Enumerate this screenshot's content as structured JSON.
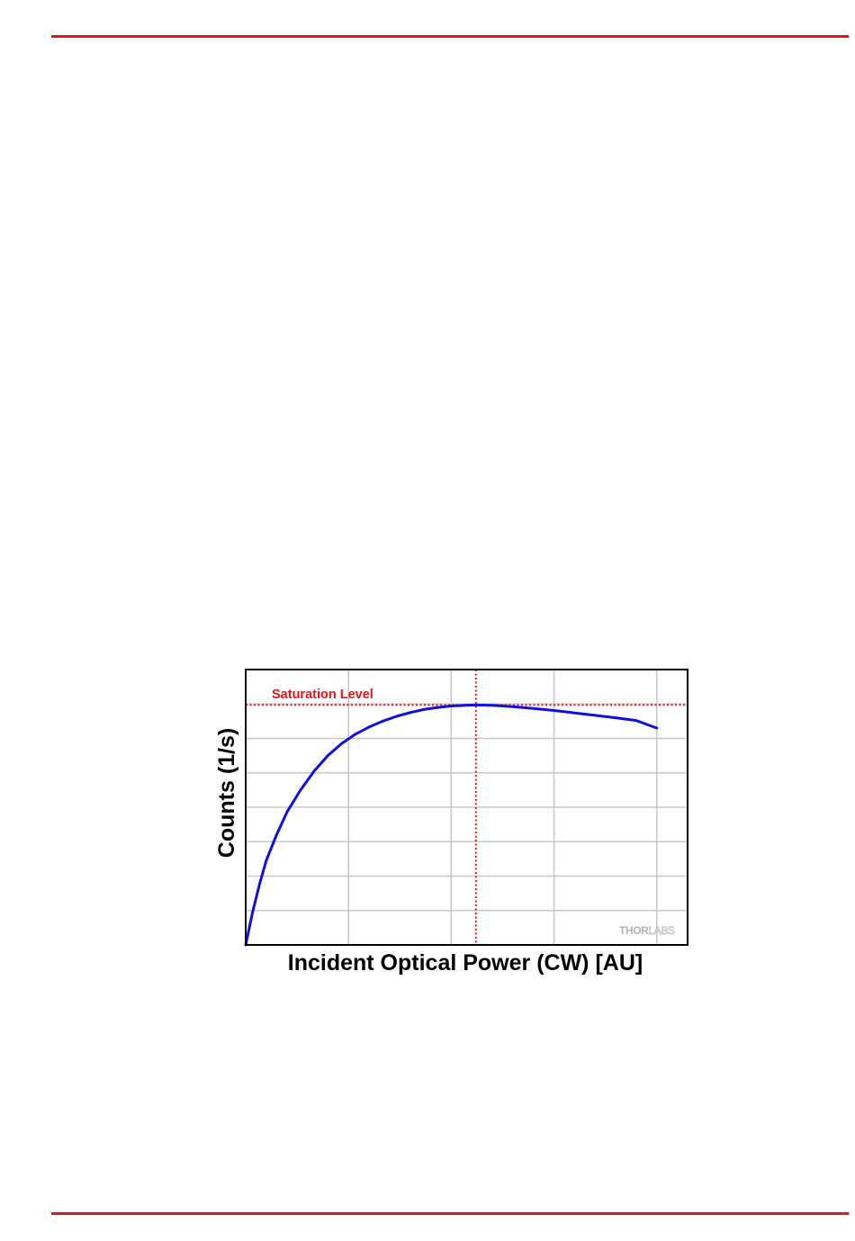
{
  "colors": {
    "page_rule": "#e8141c",
    "curve": "#1010e0",
    "saturation": "#e8141c",
    "grid": "#c8c8c8",
    "frame": "#000000"
  },
  "chart_data": {
    "type": "line",
    "xlabel": "Incident Optical Power (CW) [AU]",
    "ylabel": "Counts (1/s)",
    "xlim": [
      0,
      6.45
    ],
    "ylim": [
      0,
      8
    ],
    "grid": true,
    "x_gridlines": [
      1.5,
      3,
      4.5,
      6
    ],
    "y_gridlines": [
      1,
      2,
      3,
      4,
      5,
      6,
      7
    ],
    "annotations": [
      {
        "type": "hline",
        "label": "Saturation Level",
        "y": 6.97
      },
      {
        "type": "vline",
        "x": 3.36
      }
    ],
    "watermark": "THORLABS",
    "series": [
      {
        "x": [
          0,
          0.1,
          0.2,
          0.3,
          0.45,
          0.6,
          0.8,
          1.0,
          1.2,
          1.4,
          1.6,
          1.8,
          2.0,
          2.2,
          2.4,
          2.6,
          2.8,
          3.0,
          3.2,
          3.36,
          3.6,
          3.9,
          4.2,
          4.5,
          4.8,
          5.1,
          5.4,
          5.7,
          6.0
        ],
        "y": [
          0,
          0.95,
          1.75,
          2.45,
          3.2,
          3.85,
          4.5,
          5.05,
          5.5,
          5.85,
          6.12,
          6.33,
          6.5,
          6.64,
          6.75,
          6.84,
          6.9,
          6.94,
          6.96,
          6.97,
          6.96,
          6.92,
          6.87,
          6.81,
          6.74,
          6.67,
          6.6,
          6.52,
          6.3
        ]
      }
    ]
  }
}
